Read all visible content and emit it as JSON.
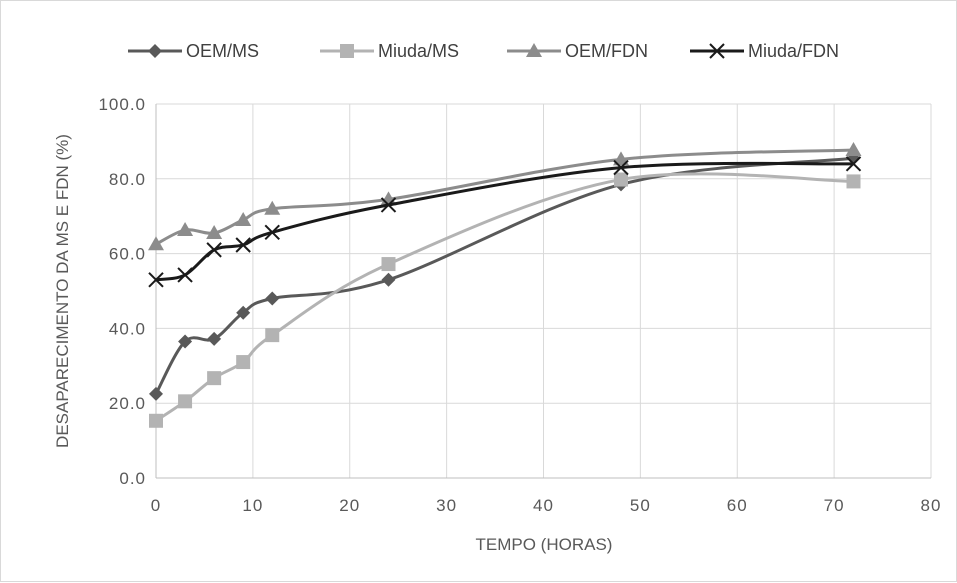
{
  "chart_data": {
    "type": "line",
    "xlabel": "TEMPO (HORAS)",
    "ylabel": "DESAPARECIMENTO DA MS E FDN (%)",
    "xlim": [
      0,
      80
    ],
    "ylim": [
      0,
      100
    ],
    "x_ticks": [
      "0",
      "10",
      "20",
      "30",
      "40",
      "50",
      "60",
      "70",
      "80"
    ],
    "y_ticks": [
      "0.0",
      "20.0",
      "40.0",
      "60.0",
      "80.0",
      "100.0"
    ],
    "grid": true,
    "legend_position": "top",
    "series": [
      {
        "name": "OEM/MS",
        "color": "#595959",
        "marker": "diamond",
        "x": [
          0,
          3,
          6,
          9,
          12,
          24,
          48,
          72
        ],
        "y": [
          22.5,
          36.5,
          37.2,
          44.2,
          48.0,
          53.0,
          78.5,
          85.5
        ]
      },
      {
        "name": "Miuda/MS",
        "color": "#b3b3b3",
        "marker": "square",
        "x": [
          0,
          3,
          6,
          9,
          12,
          24,
          48,
          72
        ],
        "y": [
          15.3,
          20.5,
          26.7,
          31.0,
          38.2,
          57.2,
          79.8,
          79.3
        ]
      },
      {
        "name": "OEM/FDN",
        "color": "#8c8c8c",
        "marker": "triangle",
        "x": [
          0,
          3,
          6,
          9,
          12,
          24,
          48,
          72
        ],
        "y": [
          62.5,
          66.3,
          65.5,
          69.0,
          72.0,
          74.5,
          85.2,
          87.7
        ]
      },
      {
        "name": "Miuda/FDN",
        "color": "#1a1a1a",
        "marker": "x",
        "x": [
          0,
          3,
          6,
          9,
          12,
          24,
          48,
          72
        ],
        "y": [
          53.0,
          54.3,
          61.0,
          62.3,
          65.7,
          73.0,
          83.0,
          84.0
        ]
      }
    ]
  }
}
